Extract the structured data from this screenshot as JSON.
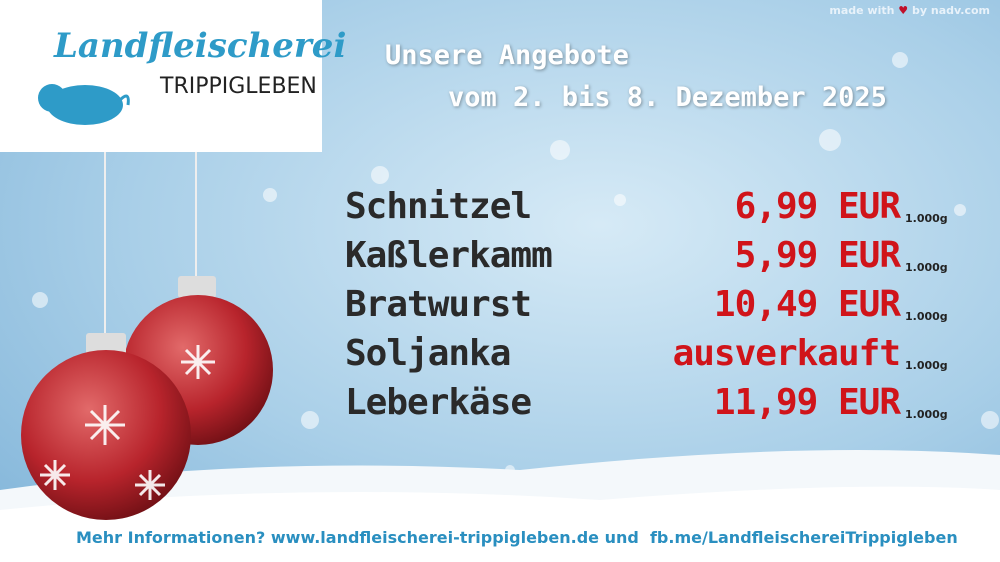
{
  "credit": {
    "before": "made with",
    "heart": "♥",
    "after": "by nadv.com"
  },
  "logo": {
    "name": "Landfleischerei",
    "place": "TRIPPIGLEBEN"
  },
  "header": {
    "title": "Unsere Angebote",
    "subtitle": "vom 2. bis 8. Dezember 2025"
  },
  "offers": [
    {
      "name": "Schnitzel",
      "price": "6,99 EUR",
      "unit": "1.000g"
    },
    {
      "name": "Kaßlerkamm",
      "price": "5,99 EUR",
      "unit": "1.000g"
    },
    {
      "name": "Bratwurst",
      "price": "10,49 EUR",
      "unit": "1.000g"
    },
    {
      "name": "Soljanka",
      "price": "ausverkauft",
      "unit": "1.000g"
    },
    {
      "name": "Leberkäse",
      "price": "11,99 EUR",
      "unit": "1.000g"
    }
  ],
  "footer": {
    "text": "Mehr Informationen? www.landfleischerei-trippigleben.de und  fb.me/LandfleischereiTrippigleben"
  }
}
